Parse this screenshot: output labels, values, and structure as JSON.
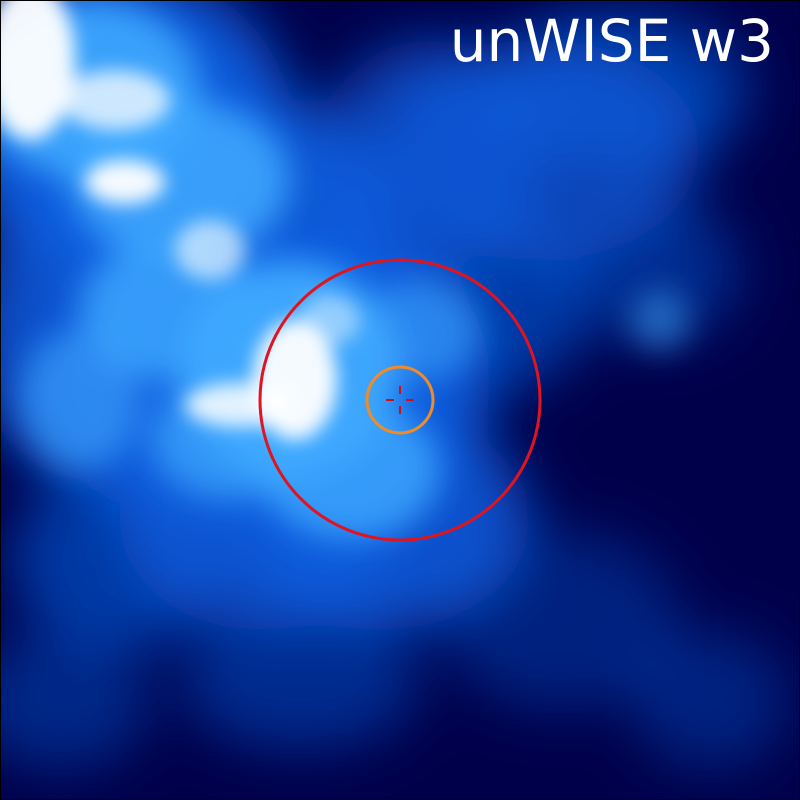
{
  "image": {
    "label": "unWISE w3",
    "colormap": {
      "background": "#00004a",
      "mid": "#0a5ee0",
      "bright": "#3fa9ff",
      "highlight": "#ffffff"
    }
  },
  "markers": {
    "outer_circle_color": "#e0141e",
    "inner_circle_color": "#f08c28",
    "crosshair_color": "#d01010"
  }
}
